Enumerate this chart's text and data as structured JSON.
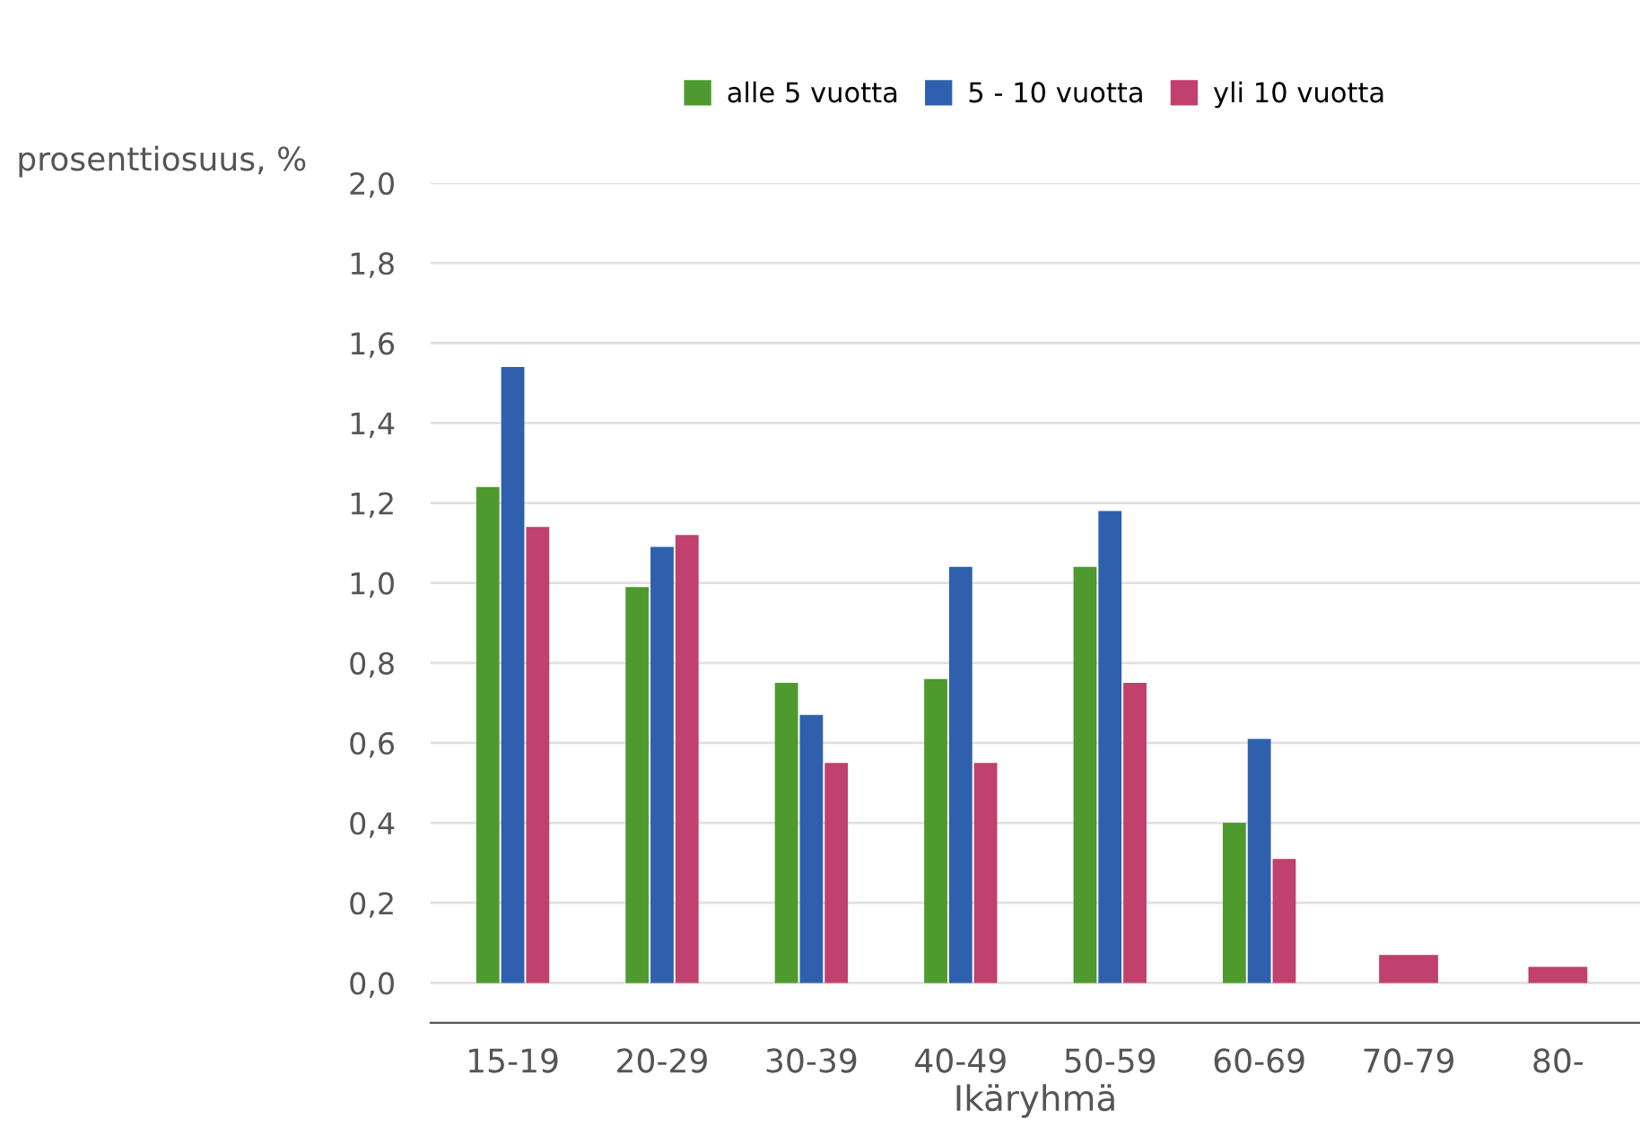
{
  "chart_data": {
    "type": "bar",
    "ylabel": "prosenttiosuus, %",
    "xlabel": "Ikäryhmä",
    "categories": [
      "15-19",
      "20-29",
      "30-39",
      "40-49",
      "50-59",
      "60-69",
      "70-79",
      "80-"
    ],
    "series": [
      {
        "name": "alle 5 vuotta",
        "color": "#4e9a2e",
        "values": [
          1.24,
          0.99,
          0.75,
          0.76,
          1.04,
          0.4,
          null,
          null
        ]
      },
      {
        "name": "5 - 10 vuotta",
        "color": "#2f60ad",
        "values": [
          1.54,
          1.09,
          0.67,
          1.04,
          1.18,
          0.61,
          null,
          null
        ]
      },
      {
        "name": "yli 10 vuotta",
        "color": "#c0406e",
        "values": [
          1.14,
          1.12,
          0.55,
          0.55,
          0.75,
          0.31,
          0.07,
          0.04
        ]
      }
    ],
    "ylim": [
      -0.1,
      2.0
    ],
    "yticks": [
      {
        "value": 0,
        "label": "0,0"
      },
      {
        "value": 0.2,
        "label": "0,2"
      },
      {
        "value": 0.4,
        "label": "0,4"
      },
      {
        "value": 0.6,
        "label": "0,6"
      },
      {
        "value": 0.8,
        "label": "0,8"
      },
      {
        "value": 1.0,
        "label": "1,0"
      },
      {
        "value": 1.2,
        "label": "1,2"
      },
      {
        "value": 1.4,
        "label": "1,4"
      },
      {
        "value": 1.6,
        "label": "1,6"
      },
      {
        "value": 1.8,
        "label": "1,8"
      },
      {
        "value": 2.0,
        "label": "2,0"
      }
    ],
    "grid": "y",
    "legend": "top"
  }
}
